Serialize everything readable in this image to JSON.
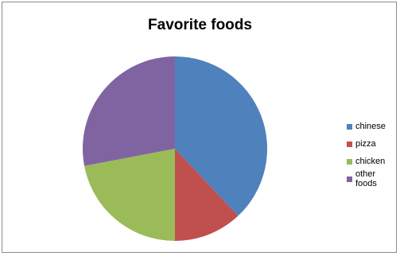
{
  "chart_data": {
    "type": "pie",
    "title": "Favorite foods",
    "categories": [
      "chinese",
      "pizza",
      "chicken",
      "other foods"
    ],
    "values": [
      38,
      12,
      22,
      28
    ],
    "colors": [
      "#4f81bd",
      "#c0504d",
      "#9bbb59",
      "#8064a2"
    ],
    "legend_position": "right",
    "start_angle": "top",
    "direction": "clockwise"
  }
}
